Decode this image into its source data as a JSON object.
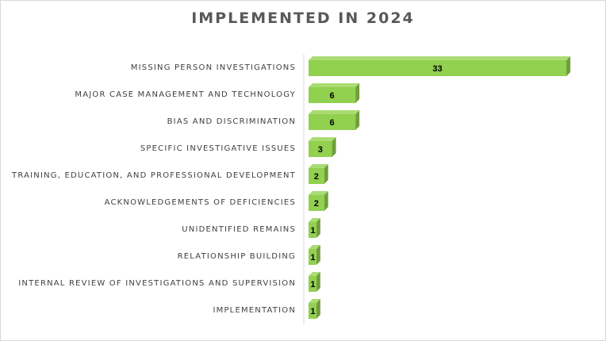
{
  "chart_data": {
    "type": "bar",
    "orientation": "horizontal",
    "title": "IMPLEMENTED IN 2024",
    "categories": [
      "MISSING PERSON INVESTIGATIONS",
      "MAJOR CASE MANAGEMENT AND TECHNOLOGY",
      "BIAS AND DISCRIMINATION",
      "SPECIFIC INVESTIGATIVE ISSUES",
      "TRAINING, EDUCATION, AND PROFESSIONAL DEVELOPMENT",
      "ACKNOWLEDGEMENTS OF DEFICIENCIES",
      "UNIDENTIFIED REMAINS",
      "RELATIONSHIP BUILDING",
      "INTERNAL REVIEW OF INVESTIGATIONS AND SUPERVISION",
      "IMPLEMENTATION"
    ],
    "values": [
      33,
      6,
      6,
      3,
      2,
      2,
      1,
      1,
      1,
      1
    ],
    "xlim": [
      0,
      36
    ],
    "grid": false,
    "data_labels": true,
    "bar_style": "3d",
    "colors": {
      "bar_front": "#92d050",
      "bar_top": "#a9dc72",
      "bar_side": "#6f9e3a",
      "axis": "#d9d9d9"
    }
  }
}
